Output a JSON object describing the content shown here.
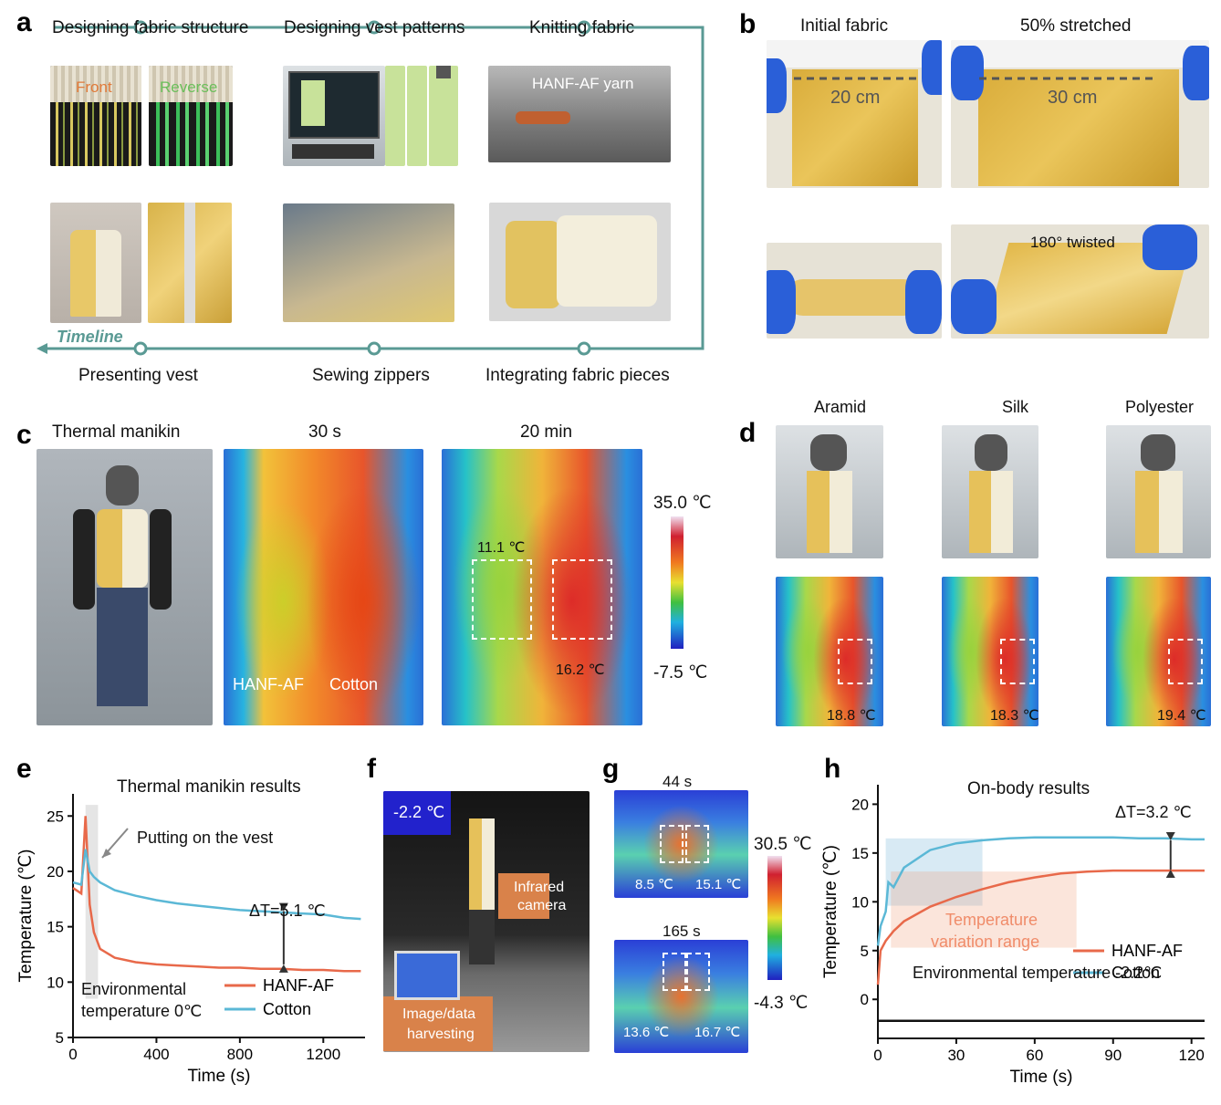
{
  "panels": {
    "a": {
      "label": "a",
      "steps_top": [
        "Designing fabric structure",
        "Designing vest patterns",
        "Knitting fabric"
      ],
      "steps_bottom": [
        "Presenting vest",
        "Sewing zippers",
        "Integrating fabric pieces"
      ],
      "timeline_label": "Timeline",
      "front_label": "Front",
      "reverse_label": "Reverse",
      "yarn_label": "HANF-AF yarn",
      "accent": "#5a9a94"
    },
    "b": {
      "label": "b",
      "initial": "Initial fabric",
      "stretched": "50% stretched",
      "len_initial": "20 cm",
      "len_stretched": "30 cm",
      "twisted": "180° twisted"
    },
    "c": {
      "label": "c",
      "titles": [
        "Thermal manikin",
        "30 s",
        "20 min"
      ],
      "hanf_label": "HANF-AF",
      "cotton_label": "Cotton",
      "val_left": "11.1 ℃",
      "val_right": "16.2 ℃",
      "scale_max": "35.0 ℃",
      "scale_min": "-7.5 ℃"
    },
    "d": {
      "label": "d",
      "materials": [
        "Aramid",
        "Silk",
        "Polyester"
      ],
      "values": [
        "18.8 ℃",
        "18.3 ℃",
        "19.4 ℃"
      ]
    },
    "e": {
      "label": "e",
      "title": "Thermal manikin results",
      "annotation": "Putting on the vest",
      "delta": "ΔT=5.1 ℃",
      "env_line1": "Environmental",
      "env_line2": "temperature 0℃"
    },
    "f": {
      "label": "f",
      "temp": "-2.2 ℃",
      "camera_line1": "Infrared",
      "camera_line2": "camera",
      "harvest_line1": "Image/data",
      "harvest_line2": "harvesting"
    },
    "g": {
      "label": "g",
      "t1": "44 s",
      "t2": "165 s",
      "v1a": "8.5 ℃",
      "v1b": "15.1 ℃",
      "v2a": "13.6 ℃",
      "v2b": "16.7 ℃",
      "scale_max": "30.5 ℃",
      "scale_min": "-4.3 ℃"
    },
    "h": {
      "label": "h",
      "title": "On-body results",
      "delta": "ΔT=3.2 ℃",
      "range_line1": "Temperature",
      "range_line2": "variation range",
      "env": "Environmental temperature -2.2℃"
    }
  },
  "chart_data": [
    {
      "type": "line",
      "panel": "e",
      "title": "Thermal manikin results",
      "xlabel": "Time (s)",
      "ylabel": "Temperature (℃)",
      "xlim": [
        0,
        1400
      ],
      "ylim": [
        5,
        27
      ],
      "xticks": [
        "0",
        "400",
        "800",
        "1200"
      ],
      "yticks": [
        "5",
        "10",
        "15",
        "20",
        "25"
      ],
      "legend_position": "bottom-right",
      "series": [
        {
          "name": "HANF-AF",
          "color": "#e8694a",
          "x": [
            0,
            40,
            60,
            80,
            100,
            130,
            200,
            300,
            400,
            500,
            600,
            700,
            800,
            900,
            1000,
            1100,
            1200,
            1300,
            1380
          ],
          "values": [
            18.5,
            18.0,
            25.0,
            17.0,
            14.5,
            13.0,
            12.2,
            11.8,
            11.6,
            11.5,
            11.4,
            11.3,
            11.3,
            11.2,
            11.2,
            11.1,
            11.1,
            11.0,
            11.0
          ]
        },
        {
          "name": "Cotton",
          "color": "#5bb8d6",
          "x": [
            0,
            40,
            60,
            80,
            100,
            130,
            200,
            300,
            400,
            500,
            600,
            700,
            800,
            900,
            1000,
            1100,
            1200,
            1300,
            1380
          ],
          "values": [
            19.0,
            18.8,
            22.0,
            20.0,
            19.5,
            19.0,
            18.3,
            17.8,
            17.4,
            17.1,
            16.9,
            16.7,
            16.5,
            16.4,
            16.3,
            16.2,
            16.1,
            15.8,
            15.7
          ]
        }
      ],
      "annotations": [
        "Putting on the vest",
        "ΔT=5.1 ℃",
        "Environmental temperature 0℃"
      ]
    },
    {
      "type": "line",
      "panel": "h",
      "title": "On-body results",
      "xlabel": "Time (s)",
      "ylabel": "Temperature (℃)",
      "xlim": [
        0,
        125
      ],
      "ylim": [
        -4,
        22
      ],
      "xticks": [
        "0",
        "30",
        "60",
        "90",
        "120"
      ],
      "yticks": [
        "0",
        "5",
        "10",
        "15",
        "20"
      ],
      "legend_position": "right",
      "series": [
        {
          "name": "HANF-AF",
          "color": "#e8694a",
          "x": [
            0,
            1,
            3,
            6,
            10,
            20,
            30,
            40,
            50,
            60,
            70,
            80,
            90,
            100,
            110,
            120,
            125
          ],
          "values": [
            1.5,
            5.0,
            6.0,
            7.0,
            8.0,
            9.5,
            10.5,
            11.3,
            12.0,
            12.5,
            12.9,
            13.1,
            13.2,
            13.2,
            13.2,
            13.2,
            13.2
          ]
        },
        {
          "name": "Cotton",
          "color": "#5bb8d6",
          "x": [
            0,
            1,
            3,
            4,
            6,
            10,
            20,
            30,
            40,
            50,
            60,
            70,
            80,
            90,
            100,
            110,
            120,
            125
          ],
          "values": [
            5.5,
            7.5,
            9.0,
            12.0,
            11.5,
            13.5,
            15.3,
            16.0,
            16.3,
            16.5,
            16.6,
            16.6,
            16.6,
            16.6,
            16.5,
            16.5,
            16.4,
            16.4
          ]
        },
        {
          "name": "Environmental temperature -2.2℃",
          "color": "#111111",
          "x": [
            0,
            125
          ],
          "values": [
            -2.2,
            -2.2
          ]
        }
      ],
      "annotations": [
        "ΔT=3.2 ℃",
        "Temperature variation range"
      ]
    }
  ]
}
